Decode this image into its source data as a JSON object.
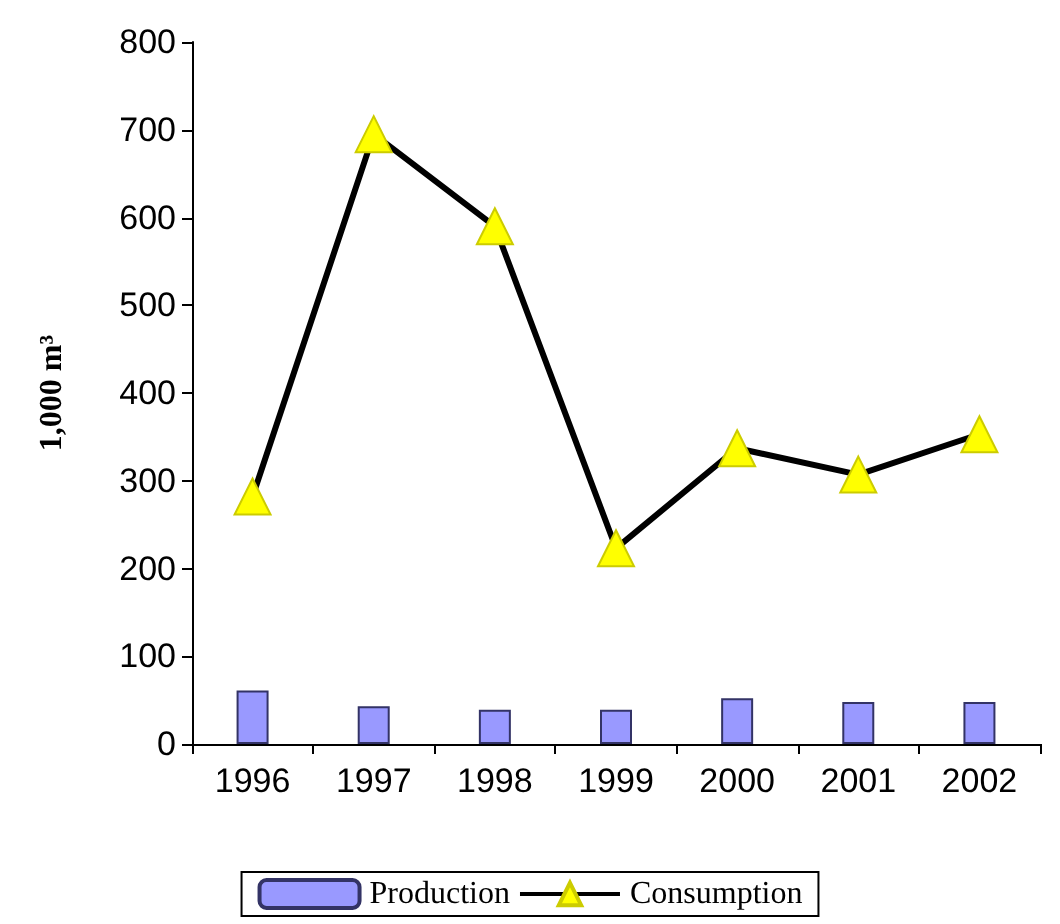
{
  "chart_data": {
    "type": "bar",
    "ylabel": "1,000 m³",
    "categories": [
      "1996",
      "1997",
      "1998",
      "1999",
      "2000",
      "2001",
      "2002"
    ],
    "series": [
      {
        "name": "Production",
        "color": "#9999ff",
        "values": [
          61,
          43,
          39,
          39,
          52,
          48,
          48
        ]
      },
      {
        "name": "Consumption",
        "type": "line",
        "color": "#000000",
        "marker": "triangle",
        "values": [
          282,
          695,
          590,
          223,
          337,
          307,
          353
        ]
      }
    ],
    "ylim": [
      0,
      800
    ],
    "yticks": [
      0,
      100,
      200,
      300,
      400,
      500,
      600,
      700,
      800
    ],
    "grid": false,
    "legend": "bottom"
  }
}
